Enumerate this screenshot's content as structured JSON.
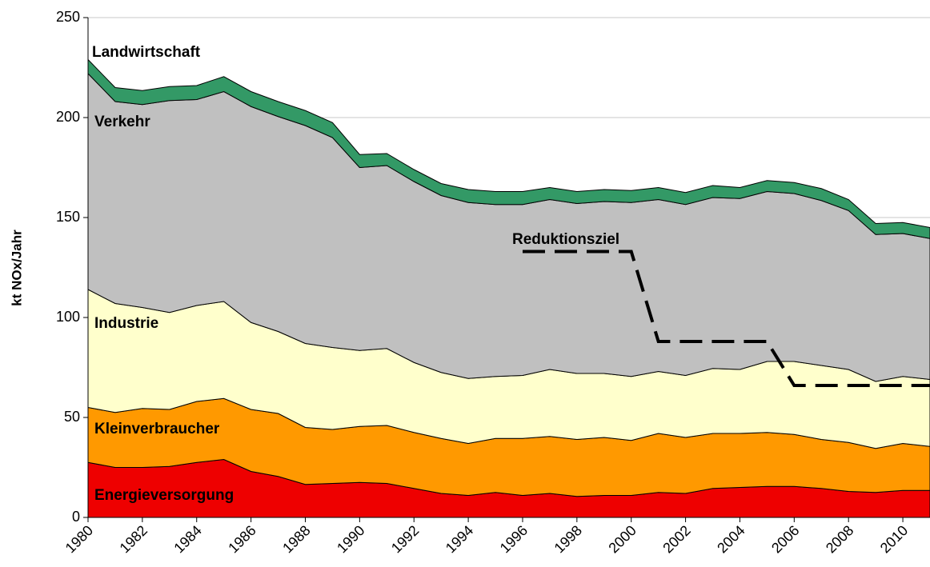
{
  "chart_data": {
    "type": "stacked_area",
    "y_label": "kt NOx/Jahr",
    "x": [
      1980,
      1981,
      1982,
      1983,
      1984,
      1985,
      1986,
      1987,
      1988,
      1989,
      1990,
      1991,
      1992,
      1993,
      1994,
      1995,
      1996,
      1997,
      1998,
      1999,
      2000,
      2001,
      2002,
      2003,
      2004,
      2005,
      2006,
      2007,
      2008,
      2009,
      2010,
      2011
    ],
    "series": [
      {
        "name": "Energieversorgung",
        "color": "#ee0000",
        "values": [
          27.5,
          25,
          25,
          25.5,
          27.5,
          29,
          23,
          20.5,
          16.5,
          17,
          17.5,
          17,
          14.5,
          12,
          11,
          12.5,
          11,
          12,
          10.5,
          11,
          11,
          12.5,
          12,
          14.5,
          15,
          15.5,
          15.5,
          14.5,
          13,
          12.5,
          13.5,
          13.5
        ]
      },
      {
        "name": "Kleinverbraucher",
        "color": "#ff9900",
        "values": [
          27.5,
          27.5,
          29.5,
          28.5,
          30.5,
          30.5,
          31,
          31.5,
          28.5,
          27,
          28,
          29,
          28,
          27.5,
          26,
          27,
          28.5,
          28.5,
          28.5,
          29,
          27.5,
          29.5,
          28,
          27.5,
          27,
          27,
          26,
          24.5,
          24.5,
          22,
          23.5,
          22
        ]
      },
      {
        "name": "Industrie",
        "color": "#ffffcc",
        "values": [
          59,
          54.5,
          50.5,
          48.5,
          48,
          48.5,
          43.5,
          41,
          42,
          41,
          38,
          38.5,
          35,
          33,
          32.5,
          31,
          31.5,
          33.5,
          33,
          32,
          32,
          31,
          31,
          32.5,
          32,
          35.5,
          36.5,
          37,
          36.5,
          33.5,
          33.5,
          33.5
        ]
      },
      {
        "name": "Verkehr",
        "color": "#c0c0c0",
        "values": [
          108,
          101,
          101.5,
          106,
          103,
          105,
          108,
          107.5,
          109,
          105,
          91.5,
          91.5,
          90.5,
          88.5,
          88,
          86,
          85.5,
          85,
          85,
          86,
          87,
          86,
          85.5,
          85.5,
          85.5,
          85,
          84,
          82.5,
          79.5,
          73.5,
          71.5,
          70.5
        ]
      },
      {
        "name": "Landwirtschaft",
        "color": "#339966",
        "values": [
          7,
          7,
          7,
          7,
          7,
          7.5,
          7.5,
          7.5,
          7.5,
          7.5,
          6.5,
          6,
          6,
          6,
          6.5,
          6.5,
          6.5,
          6,
          6,
          6,
          6,
          6,
          6,
          6,
          5.5,
          5.5,
          5.5,
          6,
          5.5,
          5.5,
          5.5,
          5.5
        ]
      }
    ],
    "target": {
      "name": "Reduktionsziel",
      "color": "#000000",
      "x": [
        1996,
        1997,
        1998,
        1999,
        2000,
        2001,
        2002,
        2003,
        2004,
        2005,
        2006,
        2007,
        2008,
        2009,
        2010,
        2011
      ],
      "values": [
        133,
        133,
        133,
        133,
        133,
        88,
        88,
        88,
        88,
        88,
        66,
        66,
        66,
        66,
        66,
        66
      ]
    },
    "xlim": [
      1980,
      2011
    ],
    "xticks": [
      1980,
      1982,
      1984,
      1986,
      1988,
      1990,
      1992,
      1994,
      1996,
      1998,
      2000,
      2002,
      2004,
      2006,
      2008,
      2010
    ],
    "ylim": [
      0,
      250
    ],
    "yticks": [
      0,
      50,
      100,
      150,
      200,
      250
    ],
    "grid": true
  }
}
